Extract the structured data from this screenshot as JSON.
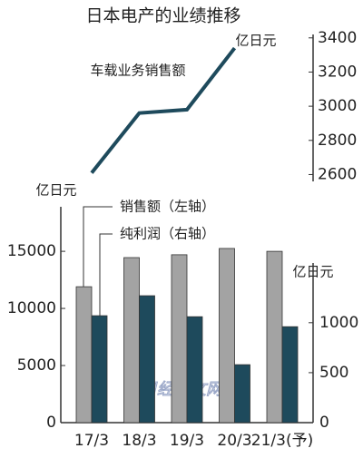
{
  "chart_data": [
    {
      "type": "line",
      "title": "日本电产的业绩推移",
      "y_label": "亿日元",
      "series": [
        {
          "name": "车载业务销售额",
          "color": "#1e4a5c",
          "values": [
            2610,
            2960,
            2980,
            3340
          ]
        }
      ],
      "ylim": [
        2560,
        3420
      ],
      "yticks": [
        2600,
        2800,
        3000,
        3200,
        3400
      ]
    },
    {
      "type": "bar",
      "y_label": "亿日元",
      "y2_label": "亿日元",
      "watermark": "日经中文网",
      "categories": [
        "17/3",
        "18/3",
        "19/3",
        "20/3",
        "21/3(予)"
      ],
      "series": [
        {
          "name": "销售额（左轴）",
          "color": "#a3a3a3",
          "values": [
            11900,
            14450,
            14700,
            15250,
            15000
          ]
        },
        {
          "name": "纯利润（右轴）",
          "color": "#1e4a5c",
          "axis": "y2",
          "values": [
            1070,
            1270,
            1060,
            580,
            960
          ]
        }
      ],
      "ylim": [
        0,
        18900
      ],
      "yticks": [
        0,
        5000,
        10000,
        15000
      ],
      "y2lim": [
        0,
        2160
      ],
      "y2ticks": [
        0,
        500,
        1000
      ]
    }
  ]
}
